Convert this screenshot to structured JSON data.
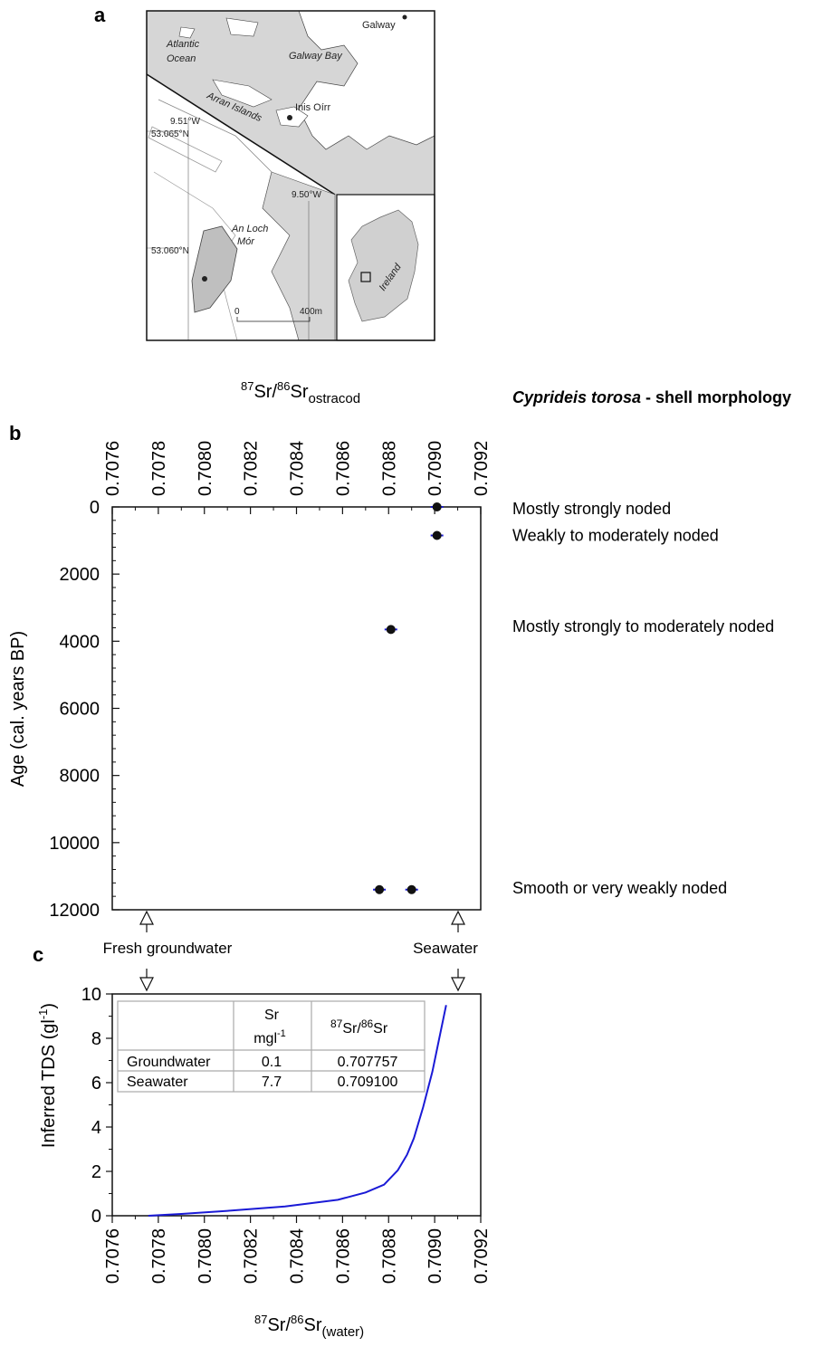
{
  "map": {
    "panel_label": "a",
    "places": {
      "galway": "Galway",
      "atlantic_1": "Atlantic",
      "atlantic_2": "Ocean",
      "galway_bay": "Galway Bay",
      "arran_islands": "Arran Islands",
      "inis_oirr": "Inis Oírr",
      "an_loch_1": "An Loch",
      "an_loch_2": "Mór",
      "ireland": "Ireland"
    },
    "coords": {
      "lon1": "9.51°W",
      "lat1": "53.065°N",
      "lon2": "9.50°W",
      "lat2": "53.060°N"
    },
    "scale": {
      "zero": "0",
      "end": "400m"
    }
  },
  "morphology_header": {
    "species": "Cyprideis torosa",
    "suffix": " - shell morphology"
  },
  "endmembers": {
    "fresh": "Fresh groundwater",
    "sea": "Seawater"
  },
  "table": {
    "header_sr": "Sr",
    "header_sr_unit": "mgl",
    "header_sr_exp": "-1",
    "header_ratio_a": "87",
    "header_ratio_b": "Sr/",
    "header_ratio_c": "86",
    "header_ratio_d": "Sr",
    "rows": [
      {
        "name": "Groundwater",
        "sr": "0.1",
        "ratio": "0.707757"
      },
      {
        "name": "Seawater",
        "sr": "7.7",
        "ratio": "0.709100"
      }
    ]
  },
  "chart_data": [
    {
      "type": "scatter",
      "panel_label": "b",
      "xlabel_parts": {
        "sup1": "87",
        "t1": "Sr/",
        "sup2": "86",
        "t2": "Sr",
        "sub": "ostracod"
      },
      "ylabel": "Age (cal. years BP)",
      "xlim": [
        0.7076,
        0.7092
      ],
      "ylim": [
        0,
        12000
      ],
      "y_inverted": true,
      "x_axis_position": "top",
      "x_ticks": [
        "0.7076",
        "0.7078",
        "0.7080",
        "0.7082",
        "0.7084",
        "0.7086",
        "0.7088",
        "0.7090",
        "0.7092"
      ],
      "y_ticks": [
        "0",
        "2000",
        "4000",
        "6000",
        "8000",
        "10000",
        "12000"
      ],
      "points": [
        {
          "x": 0.70901,
          "y": 0
        },
        {
          "x": 0.70901,
          "y": 850
        },
        {
          "x": 0.70881,
          "y": 3650
        },
        {
          "x": 0.70876,
          "y": 11400
        },
        {
          "x": 0.7089,
          "y": 11400
        }
      ],
      "morphology_annotations": [
        {
          "age": 0,
          "label": "Mostly strongly noded"
        },
        {
          "age": 800,
          "label": "Weakly  to moderately noded"
        },
        {
          "age": 3500,
          "label": "Mostly strongly to moderately noded"
        },
        {
          "age": 11300,
          "label": "Smooth or very weakly noded"
        }
      ]
    },
    {
      "type": "line",
      "panel_label": "c",
      "xlabel_parts": {
        "sup1": "87",
        "t1": "Sr/",
        "sup2": "86",
        "t2": "Sr",
        "sub": "(water)"
      },
      "ylabel_parts": {
        "t1": "Inferred TDS (gl",
        "sup": "-1",
        "t2": ")"
      },
      "xlim": [
        0.7076,
        0.7092
      ],
      "ylim": [
        0,
        10
      ],
      "x_ticks": [
        "0.7076",
        "0.7078",
        "0.7080",
        "0.7082",
        "0.7084",
        "0.7086",
        "0.7088",
        "0.7090",
        "0.7092"
      ],
      "y_ticks": [
        "0",
        "2",
        "4",
        "6",
        "8",
        "10"
      ],
      "series_color": "#1a1ad6",
      "x": [
        0.707757,
        0.7079,
        0.7081,
        0.70835,
        0.70858,
        0.7087,
        0.70878,
        0.70884,
        0.70888,
        0.70891,
        0.70895,
        0.70899,
        0.70902,
        0.70905
      ],
      "y": [
        0,
        0.08,
        0.22,
        0.42,
        0.72,
        1.05,
        1.4,
        2.05,
        2.75,
        3.5,
        4.9,
        6.5,
        8.0,
        9.5
      ]
    }
  ]
}
